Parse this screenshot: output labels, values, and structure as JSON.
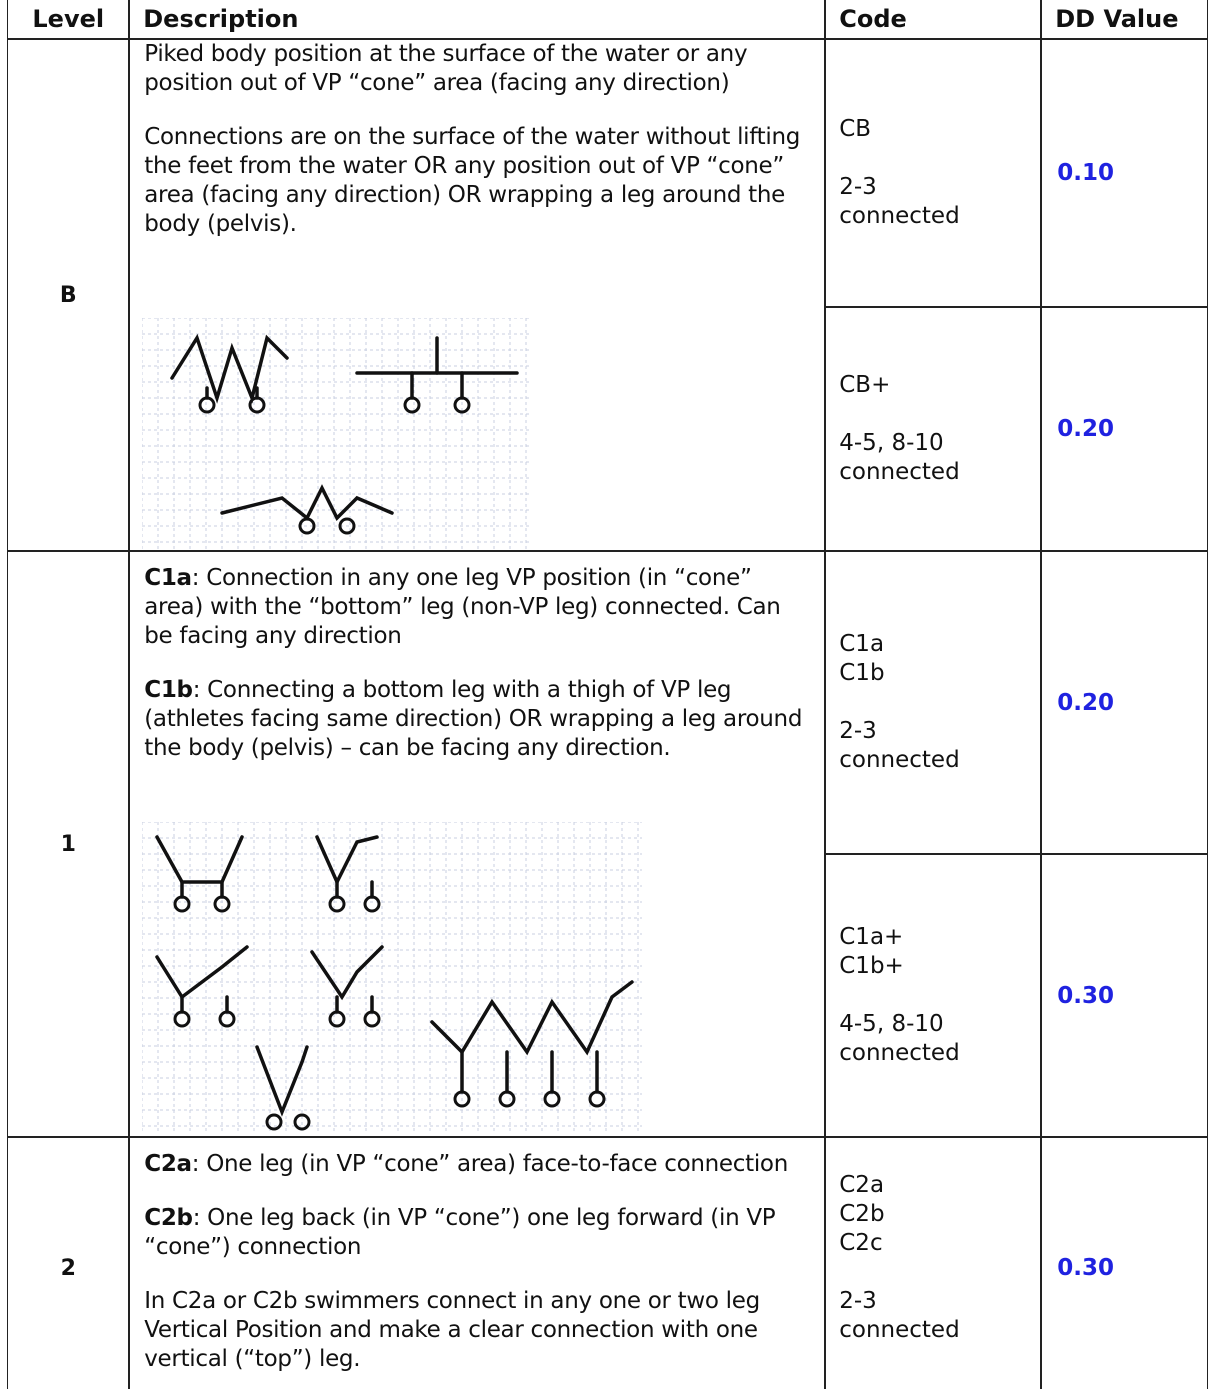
{
  "header": {
    "level": "Level",
    "description": "Description",
    "code": "Code",
    "dd_value": "DD Value"
  },
  "rows": [
    {
      "level": "B",
      "description": [
        {
          "text": "Piked body position at the surface of the water or any position out of VP “cone” area (facing any direction)"
        },
        {
          "text": "Connections are on the surface of the water without lifting the feet from the water OR any position out of VP “cone” area (facing any direction) OR wrapping a leg around the body (pelvis)."
        }
      ],
      "options": [
        {
          "codes": [
            "CB"
          ],
          "connected": [
            "2-3",
            "connected"
          ],
          "dd_value": "0.10"
        },
        {
          "codes": [
            "CB+"
          ],
          "connected": [
            "4-5, 8-10",
            "connected"
          ],
          "dd_value": "0.20"
        }
      ]
    },
    {
      "level": "1",
      "description": [
        {
          "bold": "C1a",
          "text": ": Connection in any one leg VP position (in “cone” area) with the “bottom” leg (non-VP leg) connected. Can be facing any direction"
        },
        {
          "bold": "C1b",
          "text": ": Connecting a bottom leg with a thigh of VP leg (athletes facing same direction) OR wrapping a leg around the body (pelvis) – can be facing any direction."
        }
      ],
      "options": [
        {
          "codes": [
            "C1a",
            "C1b"
          ],
          "connected": [
            "2-3",
            "connected"
          ],
          "dd_value": "0.20"
        },
        {
          "codes": [
            "C1a+",
            "C1b+"
          ],
          "connected": [
            "4-5, 8-10",
            "connected"
          ],
          "dd_value": "0.30"
        }
      ]
    },
    {
      "level": "2",
      "description": [
        {
          "bold": "C2a",
          "text": ": One leg (in VP “cone” area) face-to-face connection"
        },
        {
          "bold": "C2b",
          "text": ": One leg back (in VP “cone”) one leg forward (in VP “cone”) connection"
        },
        {
          "text": "In C2a or C2b swimmers connect in any one or two leg Vertical Position and make a clear connection with one vertical (“top”) leg."
        }
      ],
      "options": [
        {
          "codes": [
            "C2a",
            "C2b",
            "C2c"
          ],
          "connected": [
            "2-3",
            "connected"
          ],
          "dd_value": "0.30"
        }
      ]
    }
  ]
}
